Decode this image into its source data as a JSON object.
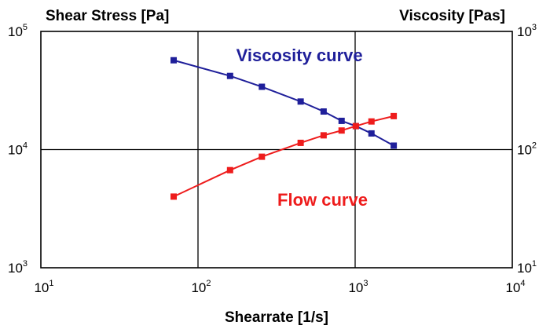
{
  "chart_data": {
    "type": "line",
    "x_scale": "log",
    "y_scale": "log",
    "xlabel": "Shearrate [1/s]",
    "ylabel_left": "Shear Stress [Pa]",
    "ylabel_right": "Viscosity [Pas]",
    "xlim": [
      10,
      10000
    ],
    "ylim_left": [
      1000,
      100000
    ],
    "ylim_right": [
      10,
      1000
    ],
    "x_ticks": [
      {
        "base": "10",
        "exp": "1"
      },
      {
        "base": "10",
        "exp": "2"
      },
      {
        "base": "10",
        "exp": "3"
      },
      {
        "base": "10",
        "exp": "4"
      }
    ],
    "y_ticks_left": [
      {
        "base": "10",
        "exp": "3"
      },
      {
        "base": "10",
        "exp": "4"
      },
      {
        "base": "10",
        "exp": "5"
      }
    ],
    "y_ticks_right": [
      {
        "base": "10",
        "exp": "1"
      },
      {
        "base": "10",
        "exp": "2"
      },
      {
        "base": "10",
        "exp": "3"
      }
    ],
    "grid": "major",
    "series": [
      {
        "name": "Viscosity curve",
        "color": "#1f1f9a",
        "axis": "right",
        "marker": "square",
        "x": [
          70,
          160,
          255,
          450,
          630,
          820,
          1010,
          1270,
          1760
        ],
        "y": [
          570,
          420,
          340,
          255,
          210,
          175,
          158,
          137,
          108
        ]
      },
      {
        "name": "Flow curve",
        "color": "#ee1c1c",
        "axis": "left",
        "marker": "square",
        "x": [
          70,
          160,
          255,
          450,
          630,
          820,
          1010,
          1270,
          1760
        ],
        "y": [
          4000,
          6700,
          8700,
          11400,
          13200,
          14500,
          15800,
          17300,
          19200
        ]
      }
    ]
  }
}
